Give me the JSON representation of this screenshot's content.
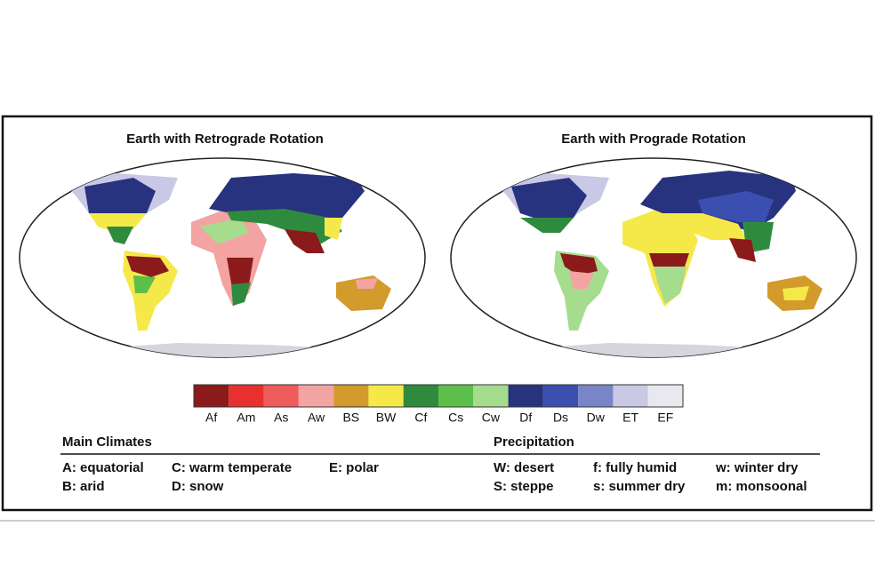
{
  "figure": {
    "maps": [
      {
        "title": "Earth with Retrograde Rotation"
      },
      {
        "title": "Earth with Prograde Rotation"
      }
    ],
    "legend": [
      {
        "code": "Af",
        "color": "#8b1a1a"
      },
      {
        "code": "Am",
        "color": "#e8312f"
      },
      {
        "code": "As",
        "color": "#ef5c5c"
      },
      {
        "code": "Aw",
        "color": "#f4a3a3"
      },
      {
        "code": "BS",
        "color": "#d39a2c"
      },
      {
        "code": "BW",
        "color": "#f5e94a"
      },
      {
        "code": "Cf",
        "color": "#2e8b3e"
      },
      {
        "code": "Cs",
        "color": "#5cbf4a"
      },
      {
        "code": "Cw",
        "color": "#a6dc8e"
      },
      {
        "code": "Df",
        "color": "#27337f"
      },
      {
        "code": "Ds",
        "color": "#3a4fb0"
      },
      {
        "code": "Dw",
        "color": "#7a84c8"
      },
      {
        "code": "ET",
        "color": "#c9c9e6"
      },
      {
        "code": "EF",
        "color": "#e8e8ee"
      }
    ],
    "main_climates": {
      "heading": "Main Climates",
      "items": [
        "A: equatorial",
        "B: arid",
        "C: warm temperate",
        "D: snow",
        "E: polar"
      ]
    },
    "precipitation": {
      "heading": "Precipitation",
      "items": [
        "W: desert",
        "S:  steppe",
        "f: fully humid",
        "s: summer dry",
        "w: winter dry",
        "m: monsoonal"
      ]
    }
  }
}
